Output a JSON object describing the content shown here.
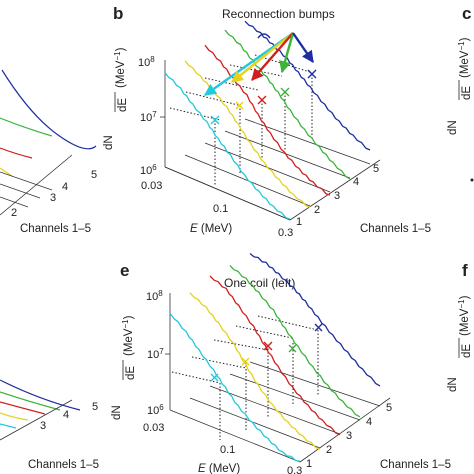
{
  "panels": {
    "b": {
      "letter": "b",
      "annotation": "Reconnection bumps"
    },
    "c": {
      "letter": "c"
    },
    "e": {
      "letter": "e",
      "annotation": "One coil (left)"
    },
    "f": {
      "letter": "f"
    }
  },
  "axes": {
    "energy_label_var": "E",
    "energy_label_unit": " (MeV)",
    "energy_ticks": [
      "0.03",
      "0.1",
      "0.3"
    ],
    "channel_label": "Channels 1–5",
    "channel_ticks": [
      "1",
      "2",
      "3",
      "4",
      "5"
    ],
    "y_label_top": "dN",
    "y_label_bottom": "dE",
    "y_label_unit": " (MeV",
    "y_label_exp": "−1",
    "y_label_close": ")",
    "y_tick_base": "10",
    "y_tick_exps": [
      "6",
      "7",
      "8"
    ]
  },
  "colors": {
    "channel_1": "#22c8dc",
    "channel_2": "#e6d21e",
    "channel_3": "#d21e1e",
    "channel_4": "#3cb43c",
    "channel_5": "#1e2ea0",
    "bump_marker": "#c8b4e6",
    "arrow_extra": "#a0e6c8"
  },
  "chart_data": [
    {
      "panel": "b",
      "type": "line",
      "title": "Reconnection bumps",
      "xlabel": "E (MeV)",
      "ylabel": "dN/dE (MeV−1)",
      "zlabel": "Channels 1–5",
      "xscale": "log",
      "yscale": "log",
      "xlim": [
        0.03,
        0.3
      ],
      "ylim": [
        1000000,
        100000000
      ],
      "channels": [
        1,
        2,
        3,
        4,
        5
      ],
      "series": [
        {
          "channel": 1,
          "color": "#22c8dc",
          "x": [
            0.03,
            0.04,
            0.05,
            0.065,
            0.08,
            0.1,
            0.13,
            0.17,
            0.22,
            0.3
          ],
          "y": [
            60000000,
            40000000,
            25000000,
            15000000,
            9000000,
            5500000,
            3000000,
            1900000,
            1300000,
            1000000
          ],
          "bump_energy": 0.065
        },
        {
          "channel": 2,
          "color": "#e6d21e",
          "x": [
            0.03,
            0.04,
            0.05,
            0.065,
            0.08,
            0.1,
            0.13,
            0.17,
            0.22,
            0.3
          ],
          "y": [
            60000000,
            40000000,
            28000000,
            17000000,
            10000000,
            5500000,
            3000000,
            1900000,
            1300000,
            1000000
          ],
          "bump_energy": 0.065
        },
        {
          "channel": 3,
          "color": "#d21e1e",
          "x": [
            0.03,
            0.04,
            0.05,
            0.065,
            0.08,
            0.1,
            0.13,
            0.17,
            0.22,
            0.3
          ],
          "y": [
            70000000,
            45000000,
            28000000,
            17000000,
            9000000,
            5000000,
            2800000,
            1800000,
            1300000,
            1000000
          ],
          "bump_energy": 0.065
        },
        {
          "channel": 4,
          "color": "#3cb43c",
          "x": [
            0.03,
            0.04,
            0.05,
            0.065,
            0.08,
            0.1,
            0.13,
            0.17,
            0.22,
            0.3
          ],
          "y": [
            80000000,
            55000000,
            35000000,
            22000000,
            14000000,
            8000000,
            4500000,
            2800000,
            1800000,
            1200000
          ],
          "bump_energy": 0.065
        },
        {
          "channel": 5,
          "color": "#1e2ea0",
          "x": [
            0.03,
            0.04,
            0.05,
            0.065,
            0.08,
            0.1,
            0.13,
            0.17,
            0.22,
            0.3
          ],
          "y": [
            70000000,
            55000000,
            42000000,
            30000000,
            20000000,
            13000000,
            8000000,
            5000000,
            3500000,
            2500000
          ],
          "bump_energy": 0.065
        }
      ]
    },
    {
      "panel": "e",
      "type": "line",
      "title": "One coil (left)",
      "xlabel": "E (MeV)",
      "ylabel": "dN/dE (MeV−1)",
      "zlabel": "Channels 1–5",
      "xscale": "log",
      "yscale": "log",
      "xlim": [
        0.03,
        0.3
      ],
      "ylim": [
        1000000,
        100000000
      ],
      "channels": [
        1,
        2,
        3,
        4,
        5
      ],
      "series": [
        {
          "channel": 1,
          "color": "#22c8dc",
          "x": [
            0.03,
            0.04,
            0.05,
            0.065,
            0.08,
            0.1,
            0.13,
            0.17,
            0.22,
            0.3
          ],
          "y": [
            50000000,
            30000000,
            18000000,
            10000000,
            6000000,
            3500000,
            2200000,
            1500000,
            1100000,
            1000000
          ],
          "bump_energy": 0.065
        },
        {
          "channel": 2,
          "color": "#e6d21e",
          "x": [
            0.03,
            0.04,
            0.05,
            0.065,
            0.08,
            0.1,
            0.13,
            0.17,
            0.22,
            0.3
          ],
          "y": [
            70000000,
            50000000,
            32000000,
            18000000,
            9500000,
            5000000,
            2800000,
            1800000,
            1300000,
            1000000
          ],
          "bump_energy": 0.065
        },
        {
          "channel": 3,
          "color": "#d21e1e",
          "x": [
            0.03,
            0.04,
            0.05,
            0.065,
            0.08,
            0.1,
            0.13,
            0.17,
            0.22,
            0.3
          ],
          "y": [
            85000000,
            65000000,
            40000000,
            22000000,
            12000000,
            6500000,
            3500000,
            2200000,
            1500000,
            1100000
          ],
          "bump_energy": 0.065
        },
        {
          "channel": 4,
          "color": "#3cb43c",
          "x": [
            0.03,
            0.04,
            0.05,
            0.065,
            0.08,
            0.1,
            0.13,
            0.17,
            0.22,
            0.3
          ],
          "y": [
            80000000,
            60000000,
            42000000,
            26000000,
            15000000,
            9000000,
            5000000,
            3000000,
            2000000,
            1400000
          ],
          "bump_energy": 0.065
        },
        {
          "channel": 5,
          "color": "#1e2ea0",
          "x": [
            0.03,
            0.04,
            0.05,
            0.065,
            0.08,
            0.1,
            0.13,
            0.17,
            0.22,
            0.3
          ],
          "y": [
            80000000,
            70000000,
            55000000,
            40000000,
            28000000,
            18000000,
            11000000,
            7000000,
            4500000,
            3000000
          ],
          "bump_energy": 0.065
        }
      ]
    }
  ]
}
